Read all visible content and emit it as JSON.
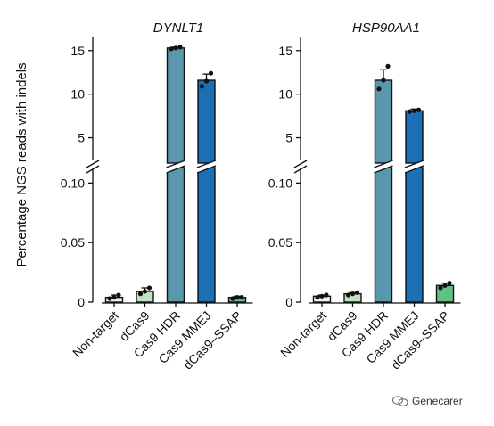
{
  "figure": {
    "ylabel": "Percentage NGS reads with indels",
    "watermark": "Genecarer"
  },
  "chart_data": [
    {
      "type": "bar",
      "title": "DYNLT1",
      "ylabel": "Percentage NGS reads with indels",
      "categories": [
        "Non-target",
        "dCas9",
        "Cas9 HDR",
        "Cas9 MMEJ",
        "dCas9–SSAP"
      ],
      "values": [
        0.004,
        0.009,
        15.3,
        11.6,
        0.004
      ],
      "errors": [
        0.002,
        0.003,
        0.1,
        0.7,
        0.001
      ],
      "points": [
        [
          0.003,
          0.004,
          0.006
        ],
        [
          0.007,
          0.009,
          0.012
        ],
        [
          15.2,
          15.3,
          15.4
        ],
        [
          10.9,
          11.5,
          12.4
        ],
        [
          0.003,
          0.004,
          0.004
        ]
      ],
      "colors": [
        "#ecf4ee",
        "#bfe3c2",
        "#5b97ac",
        "#1b6fb5",
        "#5fc283"
      ],
      "broken_axis": true,
      "lower_range": [
        0,
        0.11
      ],
      "upper_range": [
        2.5,
        16
      ],
      "lower_ticks": [
        "0",
        "0.05",
        "0.10"
      ],
      "upper_ticks": [
        "5",
        "10",
        "15"
      ]
    },
    {
      "type": "bar",
      "title": "HSP90AA1",
      "ylabel": "",
      "categories": [
        "Non-target",
        "dCas9",
        "Cas9 HDR",
        "Cas9 MMEJ",
        "dCas9–SSAP"
      ],
      "values": [
        0.005,
        0.007,
        11.6,
        8.1,
        0.014
      ],
      "errors": [
        0.001,
        0.001,
        1.2,
        0.2,
        0.002
      ],
      "points": [
        [
          0.004,
          0.005,
          0.006
        ],
        [
          0.006,
          0.007,
          0.008
        ],
        [
          10.6,
          11.6,
          13.2
        ],
        [
          8.0,
          8.1,
          8.2
        ],
        [
          0.012,
          0.014,
          0.016
        ]
      ],
      "colors": [
        "#ecf4ee",
        "#bfe3c2",
        "#5b97ac",
        "#1b6fb5",
        "#5fc283"
      ],
      "broken_axis": true,
      "lower_range": [
        0,
        0.11
      ],
      "upper_range": [
        2.5,
        16
      ],
      "lower_ticks": [
        "0",
        "0.05",
        "0.10"
      ],
      "upper_ticks": [
        "5",
        "10",
        "15"
      ]
    }
  ]
}
